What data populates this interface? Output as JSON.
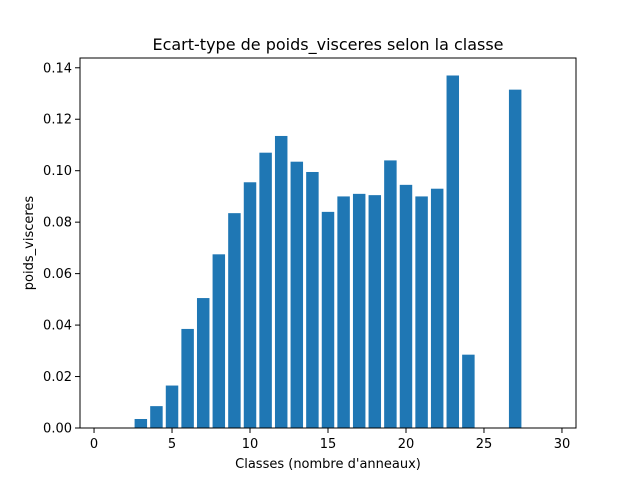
{
  "chart_data": {
    "type": "bar",
    "title": "Ecart-type de poids_visceres selon la classe",
    "xlabel": "Classes (nombre d'anneaux)",
    "ylabel": "poids_visceres",
    "x": [
      1,
      2,
      3,
      4,
      5,
      6,
      7,
      8,
      9,
      10,
      11,
      12,
      13,
      14,
      15,
      16,
      17,
      18,
      19,
      20,
      21,
      22,
      23,
      24,
      25,
      26,
      27,
      29
    ],
    "values": [
      0,
      0,
      0.0035,
      0.0085,
      0.0165,
      0.0385,
      0.0505,
      0.0675,
      0.0835,
      0.0955,
      0.107,
      0.1135,
      0.1035,
      0.0995,
      0.084,
      0.09,
      0.091,
      0.0905,
      0.104,
      0.0945,
      0.09,
      0.093,
      0.137,
      0.0285,
      0,
      0,
      0.1315,
      0
    ],
    "xlim": [
      -0.9,
      30.9
    ],
    "ylim": [
      0,
      0.1438
    ],
    "xticks": [
      "0",
      "5",
      "10",
      "15",
      "20",
      "25",
      "30"
    ],
    "yticks": [
      "0.00",
      "0.02",
      "0.04",
      "0.06",
      "0.08",
      "0.10",
      "0.12",
      "0.14"
    ],
    "bar_color": "#1f77b4",
    "grid": false
  }
}
